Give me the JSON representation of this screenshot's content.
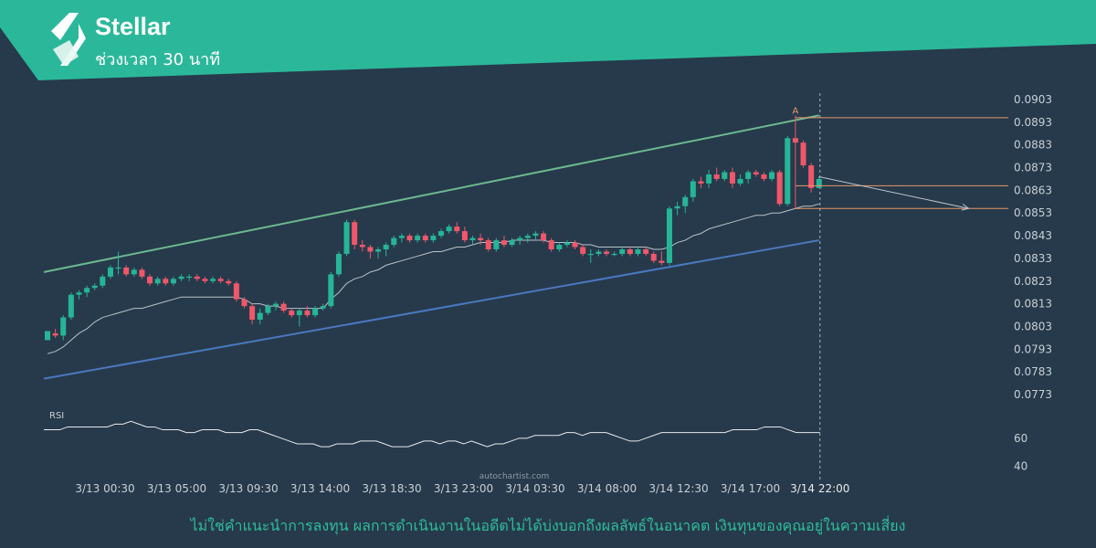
{
  "header": {
    "title": "Stellar",
    "subtitle": "ช่วงเวลา 30 นาที"
  },
  "disclaimer": "ไม่ใช่คำแนะนำการลงทุน ผลการดำเนินงานในอดีตไม่ได้บ่งบอกถึงผลลัพธ์ในอนาคต เงินทุนของคุณอยู่ในความเสี่ยง",
  "watermark": "autochartist.com",
  "colors": {
    "background": "#263a4b",
    "brand": "#2bb89a",
    "up_candle": "#26b597",
    "down_candle": "#f0576a",
    "resistance_line": "#6cb98f",
    "support_line": "#4a78bf",
    "moving_average": "#b9c2c9",
    "level_lines": "#e8976a",
    "rsi_line": "#e6e9ec"
  },
  "chart_data": {
    "type": "candlestick",
    "symbol": "Stellar",
    "interval": "30 นาที",
    "y_ticks": [
      "0.0903",
      "0.0893",
      "0.0883",
      "0.0873",
      "0.0863",
      "0.0853",
      "0.0843",
      "0.0833",
      "0.0823",
      "0.0813",
      "0.0803",
      "0.0793",
      "0.0783",
      "0.0773"
    ],
    "ylim": [
      0.0769,
      0.0905
    ],
    "x_labels": [
      "3/13 00:30",
      "3/13 05:00",
      "3/13 09:30",
      "3/13 14:00",
      "3/13 18:30",
      "3/13 23:00",
      "3/14 03:30",
      "3/14 08:00",
      "3/14 12:30",
      "3/14 17:00",
      "3/14 22:00"
    ],
    "candles": [
      [
        0.0797,
        0.0801,
        0.0797,
        0.0801
      ],
      [
        0.08,
        0.0802,
        0.0798,
        0.0799
      ],
      [
        0.0799,
        0.0808,
        0.0797,
        0.0807
      ],
      [
        0.0807,
        0.0818,
        0.0806,
        0.0817
      ],
      [
        0.0817,
        0.0819,
        0.0815,
        0.0818
      ],
      [
        0.0818,
        0.0821,
        0.0816,
        0.082
      ],
      [
        0.082,
        0.0822,
        0.0819,
        0.0821
      ],
      [
        0.0821,
        0.0826,
        0.082,
        0.0825
      ],
      [
        0.0825,
        0.083,
        0.0824,
        0.0829
      ],
      [
        0.0829,
        0.0836,
        0.0826,
        0.0829
      ],
      [
        0.0829,
        0.083,
        0.0825,
        0.0826
      ],
      [
        0.0826,
        0.0829,
        0.0825,
        0.0828
      ],
      [
        0.0828,
        0.0829,
        0.0824,
        0.0825
      ],
      [
        0.0825,
        0.0826,
        0.0821,
        0.0822
      ],
      [
        0.0822,
        0.0825,
        0.0821,
        0.0824
      ],
      [
        0.0824,
        0.0825,
        0.0821,
        0.0822
      ],
      [
        0.0822,
        0.0825,
        0.0821,
        0.0824
      ],
      [
        0.0824,
        0.0826,
        0.0823,
        0.0825
      ],
      [
        0.0825,
        0.0826,
        0.0823,
        0.0825
      ],
      [
        0.0825,
        0.0826,
        0.0823,
        0.0824
      ],
      [
        0.0824,
        0.0825,
        0.0822,
        0.0823
      ],
      [
        0.0823,
        0.0825,
        0.0822,
        0.0824
      ],
      [
        0.0824,
        0.0825,
        0.0822,
        0.0823
      ],
      [
        0.0823,
        0.0824,
        0.0821,
        0.0822
      ],
      [
        0.0822,
        0.0823,
        0.0814,
        0.0815
      ],
      [
        0.0815,
        0.0816,
        0.0811,
        0.0812
      ],
      [
        0.0812,
        0.0813,
        0.0804,
        0.0806
      ],
      [
        0.0806,
        0.0811,
        0.0804,
        0.0809
      ],
      [
        0.0809,
        0.0813,
        0.0808,
        0.0812
      ],
      [
        0.0812,
        0.0814,
        0.081,
        0.0813
      ],
      [
        0.0813,
        0.0814,
        0.0809,
        0.081
      ],
      [
        0.081,
        0.0811,
        0.0807,
        0.0808
      ],
      [
        0.0808,
        0.0811,
        0.0803,
        0.081
      ],
      [
        0.081,
        0.0812,
        0.0807,
        0.0808
      ],
      [
        0.0808,
        0.0812,
        0.0807,
        0.0811
      ],
      [
        0.0811,
        0.0813,
        0.081,
        0.0812
      ],
      [
        0.0812,
        0.0827,
        0.0811,
        0.0826
      ],
      [
        0.0826,
        0.0836,
        0.0825,
        0.0835
      ],
      [
        0.0835,
        0.085,
        0.0834,
        0.0849
      ],
      [
        0.0849,
        0.085,
        0.0837,
        0.0839
      ],
      [
        0.0839,
        0.0841,
        0.0836,
        0.0838
      ],
      [
        0.0838,
        0.0839,
        0.0833,
        0.0836
      ],
      [
        0.0836,
        0.0838,
        0.0833,
        0.0837
      ],
      [
        0.0837,
        0.084,
        0.0834,
        0.0839
      ],
      [
        0.0839,
        0.0843,
        0.0838,
        0.0842
      ],
      [
        0.0842,
        0.0844,
        0.084,
        0.0843
      ],
      [
        0.0843,
        0.0844,
        0.084,
        0.0841
      ],
      [
        0.0841,
        0.0844,
        0.084,
        0.0843
      ],
      [
        0.0843,
        0.0844,
        0.084,
        0.0841
      ],
      [
        0.0841,
        0.0844,
        0.084,
        0.0843
      ],
      [
        0.0843,
        0.0846,
        0.0842,
        0.0845
      ],
      [
        0.0845,
        0.0848,
        0.0844,
        0.0847
      ],
      [
        0.0847,
        0.0849,
        0.0844,
        0.0845
      ],
      [
        0.0845,
        0.0847,
        0.084,
        0.0841
      ],
      [
        0.0841,
        0.0843,
        0.0839,
        0.0842
      ],
      [
        0.0842,
        0.0844,
        0.0839,
        0.0841
      ],
      [
        0.0841,
        0.0842,
        0.0836,
        0.0837
      ],
      [
        0.0837,
        0.0842,
        0.0836,
        0.0841
      ],
      [
        0.0841,
        0.0843,
        0.0838,
        0.0839
      ],
      [
        0.0839,
        0.0842,
        0.0838,
        0.0841
      ],
      [
        0.0841,
        0.0843,
        0.0839,
        0.0842
      ],
      [
        0.0842,
        0.0844,
        0.084,
        0.0843
      ],
      [
        0.0843,
        0.0845,
        0.0841,
        0.0844
      ],
      [
        0.0844,
        0.0845,
        0.084,
        0.0841
      ],
      [
        0.0841,
        0.0842,
        0.0836,
        0.0837
      ],
      [
        0.0837,
        0.084,
        0.0836,
        0.0839
      ],
      [
        0.0839,
        0.0841,
        0.0838,
        0.084
      ],
      [
        0.084,
        0.0841,
        0.0837,
        0.0838
      ],
      [
        0.0838,
        0.0839,
        0.0834,
        0.0835
      ],
      [
        0.0835,
        0.0837,
        0.0831,
        0.0835
      ],
      [
        0.0835,
        0.0837,
        0.0834,
        0.0836
      ],
      [
        0.0836,
        0.0837,
        0.0834,
        0.0835
      ],
      [
        0.0835,
        0.0836,
        0.0834,
        0.0835
      ],
      [
        0.0835,
        0.0838,
        0.0834,
        0.0837
      ],
      [
        0.0837,
        0.0838,
        0.0834,
        0.0835
      ],
      [
        0.0835,
        0.0838,
        0.0834,
        0.0837
      ],
      [
        0.0837,
        0.0838,
        0.0834,
        0.0835
      ],
      [
        0.0835,
        0.0836,
        0.0831,
        0.0832
      ],
      [
        0.0832,
        0.0836,
        0.083,
        0.0831
      ],
      [
        0.0831,
        0.0856,
        0.083,
        0.0855
      ],
      [
        0.0855,
        0.0858,
        0.0852,
        0.0856
      ],
      [
        0.0856,
        0.0861,
        0.0853,
        0.086
      ],
      [
        0.086,
        0.0868,
        0.0858,
        0.0867
      ],
      [
        0.0867,
        0.0869,
        0.0864,
        0.0866
      ],
      [
        0.0866,
        0.0872,
        0.0864,
        0.087
      ],
      [
        0.087,
        0.0873,
        0.0867,
        0.0868
      ],
      [
        0.0868,
        0.0872,
        0.0867,
        0.0871
      ],
      [
        0.0871,
        0.0873,
        0.0864,
        0.0866
      ],
      [
        0.0866,
        0.087,
        0.0865,
        0.0868
      ],
      [
        0.0868,
        0.0872,
        0.0866,
        0.0871
      ],
      [
        0.0871,
        0.0872,
        0.0869,
        0.087
      ],
      [
        0.087,
        0.0871,
        0.0867,
        0.0868
      ],
      [
        0.0868,
        0.0872,
        0.0867,
        0.0871
      ],
      [
        0.0871,
        0.0872,
        0.0856,
        0.0857
      ],
      [
        0.0857,
        0.0887,
        0.0856,
        0.0886
      ],
      [
        0.0886,
        0.0896,
        0.0855,
        0.0884
      ],
      [
        0.0884,
        0.0885,
        0.0873,
        0.0874
      ],
      [
        0.0874,
        0.0875,
        0.0862,
        0.0864
      ],
      [
        0.0864,
        0.0869,
        0.0864,
        0.0868
      ]
    ],
    "moving_average": [
      0.0791,
      0.0792,
      0.0794,
      0.0797,
      0.08,
      0.0802,
      0.0805,
      0.0807,
      0.0808,
      0.0809,
      0.081,
      0.0811,
      0.0811,
      0.0812,
      0.0813,
      0.0814,
      0.0815,
      0.0816,
      0.0816,
      0.0816,
      0.0816,
      0.0816,
      0.0816,
      0.0816,
      0.0816,
      0.0815,
      0.0813,
      0.0813,
      0.0812,
      0.0812,
      0.0811,
      0.0811,
      0.0811,
      0.0811,
      0.0811,
      0.0811,
      0.0815,
      0.0818,
      0.0822,
      0.0824,
      0.0825,
      0.0827,
      0.0828,
      0.083,
      0.0831,
      0.0832,
      0.0833,
      0.0834,
      0.0835,
      0.0836,
      0.0836,
      0.0837,
      0.0838,
      0.0838,
      0.0839,
      0.084,
      0.084,
      0.084,
      0.084,
      0.0841,
      0.0841,
      0.0841,
      0.0841,
      0.0841,
      0.084,
      0.084,
      0.084,
      0.084,
      0.0839,
      0.0839,
      0.0838,
      0.0838,
      0.0838,
      0.0838,
      0.0838,
      0.0838,
      0.0838,
      0.0837,
      0.0837,
      0.0838,
      0.084,
      0.0841,
      0.0843,
      0.0844,
      0.0846,
      0.0847,
      0.0848,
      0.0849,
      0.085,
      0.0851,
      0.0852,
      0.0852,
      0.0853,
      0.0853,
      0.0854,
      0.0855,
      0.0856,
      0.0856,
      0.0857
    ],
    "resistance_line": {
      "start": [
        0,
        0.0827
      ],
      "end": [
        98,
        0.0896
      ]
    },
    "support_line": {
      "start": [
        0,
        0.078
      ],
      "end": [
        98,
        0.0841
      ]
    },
    "annotation": {
      "label": "A",
      "index": 95,
      "value": 0.0896
    },
    "levels": [
      {
        "name": "upper",
        "value": 0.0895,
        "from_index": 95
      },
      {
        "name": "middle",
        "value": 0.0865,
        "from_index": 95
      },
      {
        "name": "lower",
        "value": 0.0855,
        "from_index": 95
      }
    ],
    "forecast_arrow": {
      "from": [
        98,
        0.0869
      ],
      "to": [
        117,
        0.0855
      ]
    },
    "rsi": {
      "label": "RSI",
      "ticks": [
        "60",
        "40"
      ],
      "ylim": [
        34,
        78
      ],
      "values": [
        66,
        66,
        66,
        68,
        68,
        68,
        68,
        68,
        68,
        70,
        70,
        72,
        70,
        68,
        68,
        66,
        66,
        66,
        64,
        64,
        66,
        66,
        66,
        64,
        64,
        64,
        66,
        66,
        64,
        62,
        60,
        58,
        56,
        56,
        56,
        54,
        54,
        56,
        56,
        56,
        58,
        58,
        58,
        56,
        54,
        54,
        54,
        56,
        58,
        58,
        56,
        58,
        58,
        56,
        58,
        56,
        54,
        56,
        56,
        58,
        60,
        60,
        62,
        62,
        62,
        62,
        64,
        64,
        62,
        64,
        64,
        64,
        62,
        60,
        58,
        58,
        60,
        62,
        64,
        64,
        64,
        64,
        64,
        64,
        64,
        64,
        64,
        66,
        66,
        66,
        66,
        68,
        68,
        68,
        66,
        64,
        64,
        64,
        64
      ]
    },
    "current_time_label": "3/14 22:00"
  }
}
